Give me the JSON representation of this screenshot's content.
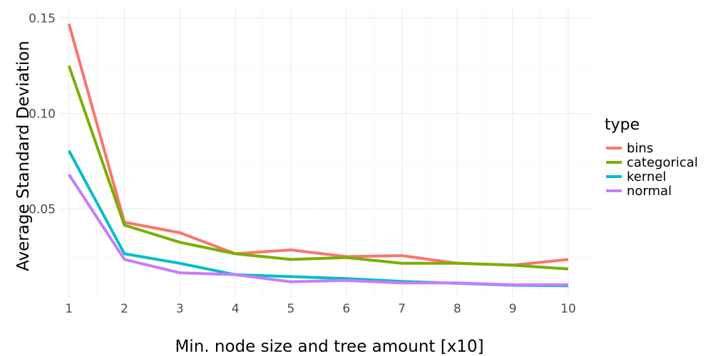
{
  "chart_data": {
    "type": "line",
    "title": "",
    "xlabel": "Min. node size and tree amount [x10]",
    "ylabel": "Average Standard Deviation",
    "x": [
      1,
      2,
      3,
      4,
      5,
      6,
      7,
      8,
      9,
      10
    ],
    "x_ticks": [
      "1",
      "2",
      "3",
      "4",
      "5",
      "6",
      "7",
      "8",
      "9",
      "10"
    ],
    "y_ticks": [
      0.05,
      0.1,
      0.15
    ],
    "y_tick_labels": [
      "0.05",
      "0.10",
      "0.15"
    ],
    "xlim": [
      0.85,
      10.45
    ],
    "ylim": [
      0.0035,
      0.155
    ],
    "grid": true,
    "legend": {
      "title": "type",
      "position": "right"
    },
    "series": [
      {
        "name": "bins",
        "color": "#F8766D",
        "values": [
          0.147,
          0.043,
          0.0375,
          0.0265,
          0.0285,
          0.025,
          0.0255,
          0.0215,
          0.0205,
          0.0235
        ]
      },
      {
        "name": "categorical",
        "color": "#7CAE00",
        "values": [
          0.125,
          0.0415,
          0.0325,
          0.0265,
          0.0235,
          0.0245,
          0.0215,
          0.0215,
          0.0205,
          0.0185
        ]
      },
      {
        "name": "kernel",
        "color": "#00BFC4",
        "values": [
          0.0805,
          0.0265,
          0.0215,
          0.0155,
          0.0145,
          0.0135,
          0.012,
          0.011,
          0.01,
          0.0097
        ]
      },
      {
        "name": "normal",
        "color": "#C77CFF",
        "values": [
          0.068,
          0.0235,
          0.0165,
          0.0155,
          0.0118,
          0.0125,
          0.0112,
          0.0112,
          0.0102,
          0.0102
        ]
      }
    ]
  }
}
